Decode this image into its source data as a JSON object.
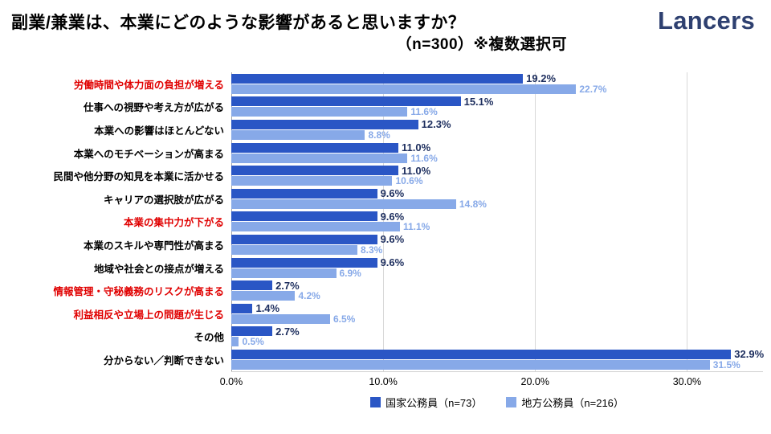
{
  "header": {
    "title_line1": "副業/兼業は、本業にどのような影響があると思いますか？",
    "title_line2": "（n=300）※複数選択可",
    "logo": "Lancers"
  },
  "colors": {
    "red_label": "#e00000",
    "logo": "#2e4070",
    "gridline": "#d9d9d9"
  },
  "chart_data": {
    "type": "bar",
    "orientation": "horizontal",
    "title": "副業/兼業は、本業にどのような影響があると思いますか？",
    "subtitle": "（n=300）※複数選択可",
    "xlim": [
      0,
      35
    ],
    "grid": true,
    "legend_position": "bottom",
    "x_ticks": [
      {
        "value": 0,
        "label": "0.0%"
      },
      {
        "value": 10,
        "label": "10.0%"
      },
      {
        "value": 20,
        "label": "20.0%"
      },
      {
        "value": 30,
        "label": "30.0%"
      }
    ],
    "categories": [
      {
        "label": "労働時間や体力面の負担が増える",
        "red": true
      },
      {
        "label": "仕事への視野や考え方が広がる",
        "red": false
      },
      {
        "label": "本業への影響はほとんどない",
        "red": false
      },
      {
        "label": "本業へのモチベーションが高まる",
        "red": false
      },
      {
        "label": "民間や他分野の知見を本業に活かせる",
        "red": false
      },
      {
        "label": "キャリアの選択肢が広がる",
        "red": false
      },
      {
        "label": "本業の集中力が下がる",
        "red": true
      },
      {
        "label": "本業のスキルや専門性が高まる",
        "red": false
      },
      {
        "label": "地域や社会との接点が増える",
        "red": false
      },
      {
        "label": "情報管理・守秘義務のリスクが高まる",
        "red": true
      },
      {
        "label": "利益相反や立場上の問題が生じる",
        "red": true
      },
      {
        "label": "その他",
        "red": false
      },
      {
        "label": "分からない／判断できない",
        "red": false
      }
    ],
    "series": [
      {
        "name": "国家公務員（n=73）",
        "color": "#2a56c5",
        "label_color": "#1d2e5e",
        "values": [
          19.2,
          15.1,
          12.3,
          11.0,
          11.0,
          9.6,
          9.6,
          9.6,
          9.6,
          2.7,
          1.4,
          2.7,
          32.9
        ]
      },
      {
        "name": "地方公務員（n=216）",
        "color": "#87a9e8",
        "label_color": "#87a9e8",
        "values": [
          22.7,
          11.6,
          8.8,
          11.6,
          10.6,
          14.8,
          11.1,
          8.3,
          6.9,
          4.2,
          6.5,
          0.5,
          31.5
        ]
      }
    ]
  }
}
